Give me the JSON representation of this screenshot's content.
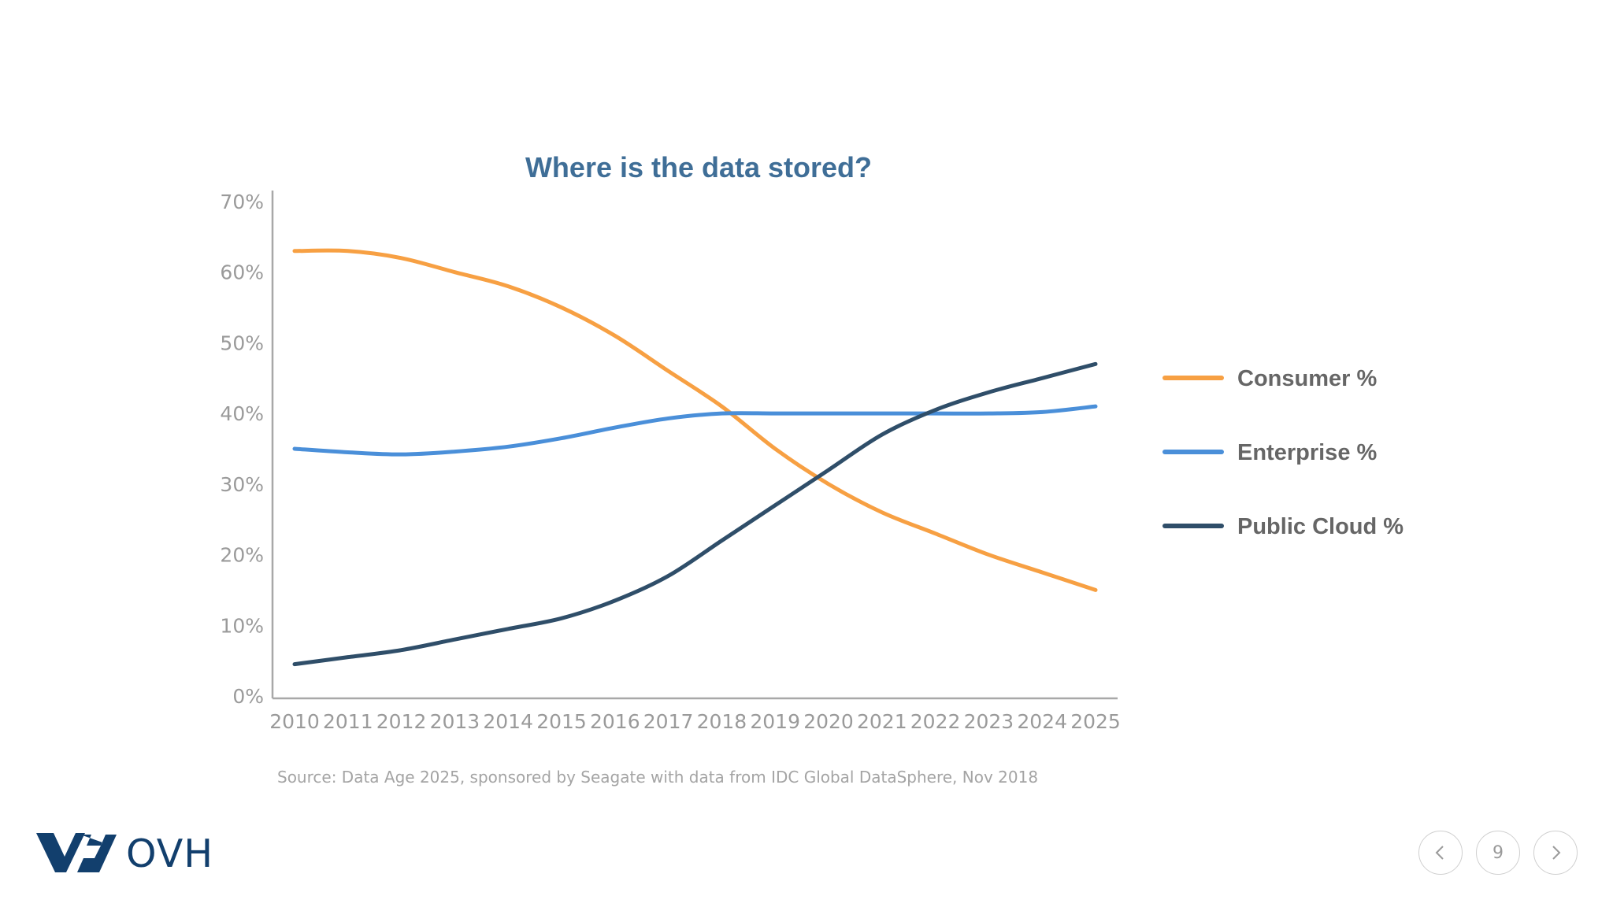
{
  "chart_data": {
    "type": "line",
    "title": "Where is the data stored?",
    "xlabel": "",
    "ylabel": "",
    "x": [
      "2010",
      "2011",
      "2012",
      "2013",
      "2014",
      "2015",
      "2016",
      "2017",
      "2018",
      "2019",
      "2020",
      "2021",
      "2022",
      "2023",
      "2024",
      "2025"
    ],
    "ylim": [
      0,
      70
    ],
    "yticks": [
      "0%",
      "10%",
      "20%",
      "30%",
      "40%",
      "50%",
      "60%",
      "70%"
    ],
    "grid": false,
    "legend_position": "right",
    "series": [
      {
        "name": "Consumer %",
        "color": "#f7a043",
        "values": [
          63,
          63,
          62,
          60,
          58,
          55,
          51,
          46,
          41,
          35,
          30,
          26,
          23,
          20,
          17.5,
          15
        ]
      },
      {
        "name": "Enterprise %",
        "color": "#4a8fd9",
        "values": [
          35,
          34.5,
          34.2,
          34.6,
          35.3,
          36.5,
          38,
          39.3,
          40,
          40,
          40,
          40,
          40,
          40,
          40.2,
          41
        ]
      },
      {
        "name": "Public Cloud %",
        "color": "#2f4e69",
        "values": [
          4.5,
          5.5,
          6.5,
          8,
          9.5,
          11,
          13.5,
          17,
          22,
          27,
          32,
          37,
          40.5,
          43,
          45,
          47
        ]
      }
    ]
  },
  "source": "Source: Data Age 2025, sponsored by Seagate with data from IDC Global DataSphere, Nov 2018",
  "logo": {
    "text": "OVH",
    "color": "#123f6d"
  },
  "navigation": {
    "page_number": "9",
    "prev_icon": "chevron-left-icon",
    "next_icon": "chevron-right-icon"
  }
}
